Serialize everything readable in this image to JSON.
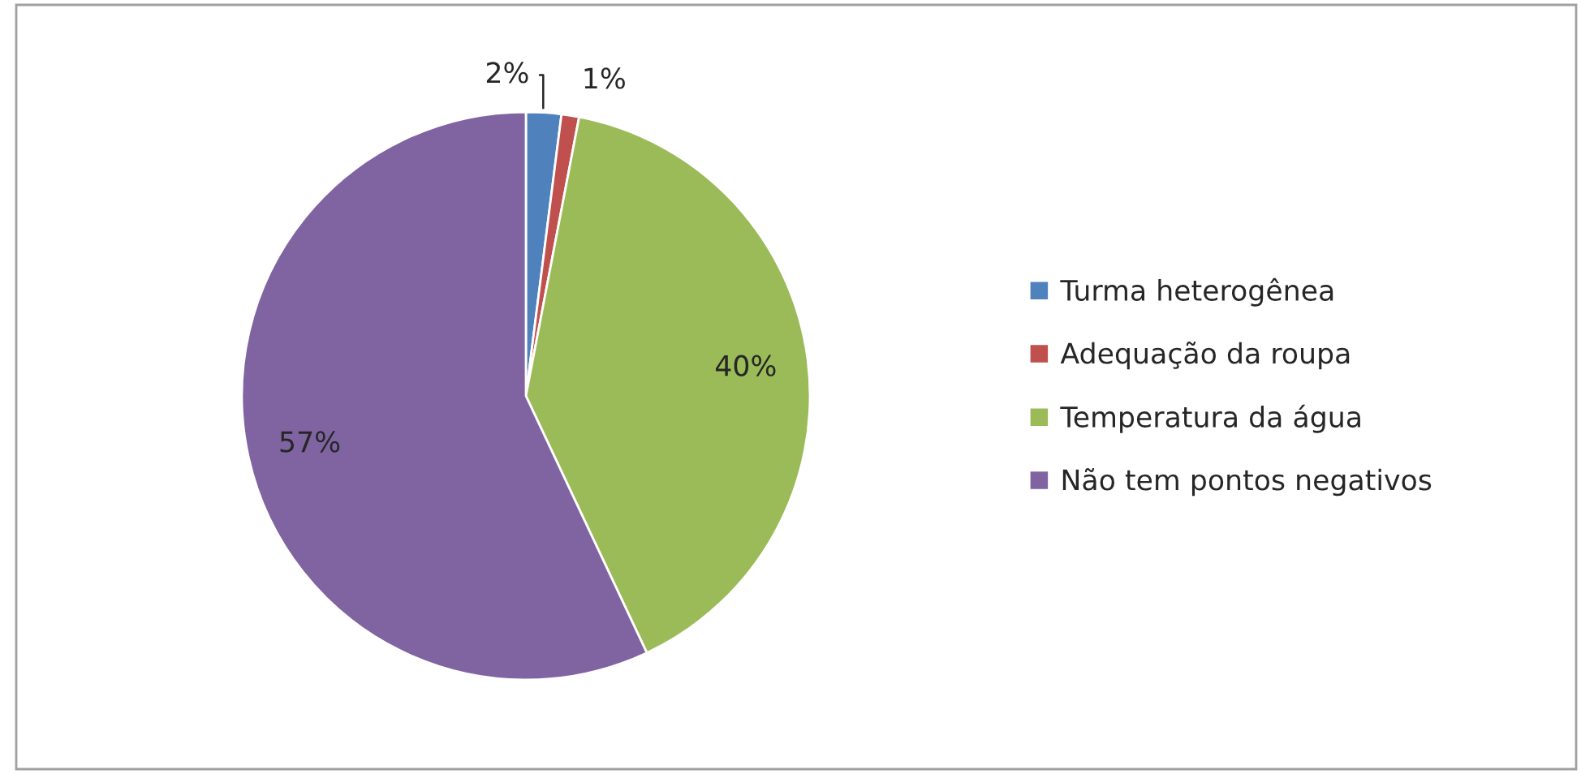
{
  "chart_data": {
    "type": "pie",
    "categories": [
      "Turma heterogênea",
      "Adequação da roupa",
      "Temperatura da água",
      "Não tem pontos negativos"
    ],
    "values": [
      2,
      1,
      40,
      57
    ],
    "colors": [
      "#4f81bd",
      "#c0504d",
      "#9bbb59",
      "#8064a2"
    ],
    "value_labels": [
      "2%",
      "1%",
      "40%",
      "57%"
    ],
    "legend": "right"
  }
}
